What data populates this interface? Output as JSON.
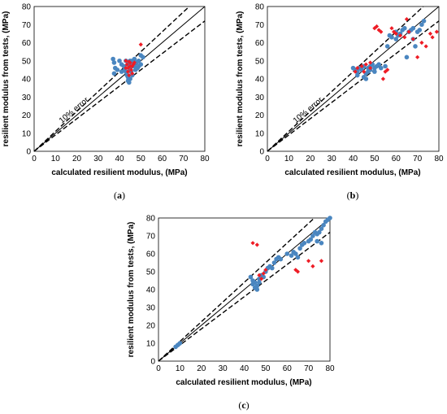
{
  "colors": {
    "series_blue": "#4a86c0",
    "series_red": "#ee1c25",
    "line": "#000000",
    "frame": "#000000",
    "background": "#ffffff"
  },
  "chart_data": [
    {
      "type": "scatter",
      "caption": {
        "open": "(",
        "letter": "a",
        "close": ")"
      },
      "xlabel": "calculated resilient modulus, (MPa)",
      "ylabel": "resilient modulus from tests, (MPa)",
      "xlim": [
        0,
        80
      ],
      "ylim": [
        0,
        80
      ],
      "xticks": [
        0,
        10,
        20,
        30,
        40,
        50,
        60,
        70,
        80
      ],
      "yticks": [
        0,
        10,
        20,
        30,
        40,
        50,
        60,
        70,
        80
      ],
      "annotation": "10% error",
      "reference_lines": [
        {
          "style": "solid",
          "slope": 1.0
        },
        {
          "style": "dashed",
          "slope": 1.1
        },
        {
          "style": "dashed",
          "slope": 0.9
        }
      ],
      "series": [
        {
          "color": "blue",
          "marker": "circle",
          "points": [
            [
              37,
              51
            ],
            [
              37.5,
              49
            ],
            [
              38,
              46
            ],
            [
              37.5,
              43
            ],
            [
              39,
              45
            ],
            [
              40,
              50
            ],
            [
              41,
              48
            ],
            [
              42,
              47
            ],
            [
              42.5,
              45
            ],
            [
              43,
              50
            ],
            [
              43,
              44
            ],
            [
              43.5,
              42
            ],
            [
              44,
              41
            ],
            [
              44,
              39
            ],
            [
              44.5,
              38
            ],
            [
              44,
              48
            ],
            [
              45,
              46
            ],
            [
              45,
              50
            ],
            [
              45.5,
              44
            ],
            [
              46,
              48
            ],
            [
              46,
              42
            ],
            [
              47,
              47
            ],
            [
              47,
              51
            ],
            [
              47.5,
              45
            ],
            [
              48,
              49
            ],
            [
              48.5,
              46
            ],
            [
              49,
              50
            ],
            [
              49,
              47
            ],
            [
              50,
              48
            ],
            [
              50,
              53
            ],
            [
              51,
              52
            ],
            [
              41,
              44
            ],
            [
              45,
              40
            ],
            [
              46,
              50
            ]
          ]
        },
        {
          "color": "red",
          "marker": "diamond",
          "points": [
            [
              43,
              50
            ],
            [
              43.5,
              48
            ],
            [
              44,
              46
            ],
            [
              44,
              44
            ],
            [
              44.5,
              42
            ],
            [
              45,
              49
            ],
            [
              45,
              47
            ],
            [
              45.5,
              45
            ],
            [
              46,
              43
            ],
            [
              46.5,
              48
            ],
            [
              47,
              49
            ],
            [
              43,
              46
            ],
            [
              44.5,
              49.5
            ],
            [
              46,
              47
            ],
            [
              50,
              59
            ]
          ]
        }
      ]
    },
    {
      "type": "scatter",
      "caption": {
        "open": "(",
        "letter": "b",
        "close": ")"
      },
      "xlabel": "calculated resilient modulus, (MPa)",
      "ylabel": "resilient modulus from tests, (MPa)",
      "xlim": [
        0,
        80
      ],
      "ylim": [
        0,
        80
      ],
      "xticks": [
        0,
        10,
        20,
        30,
        40,
        50,
        60,
        70,
        80
      ],
      "yticks": [
        0,
        10,
        20,
        30,
        40,
        50,
        60,
        70,
        80
      ],
      "annotation": "10% error",
      "reference_lines": [
        {
          "style": "solid",
          "slope": 1.0
        },
        {
          "style": "dashed",
          "slope": 1.1
        },
        {
          "style": "dashed",
          "slope": 0.9
        }
      ],
      "series": [
        {
          "color": "blue",
          "marker": "circle",
          "points": [
            [
              40,
              46
            ],
            [
              41,
              45
            ],
            [
              42,
              44
            ],
            [
              42,
              42
            ],
            [
              43,
              46
            ],
            [
              44,
              45
            ],
            [
              45,
              47
            ],
            [
              45,
              41
            ],
            [
              46,
              43
            ],
            [
              46,
              40
            ],
            [
              47,
              46
            ],
            [
              47,
              44
            ],
            [
              48,
              47
            ],
            [
              48,
              45
            ],
            [
              49,
              48
            ],
            [
              50,
              46
            ],
            [
              50,
              44
            ],
            [
              51,
              47
            ],
            [
              52,
              48
            ],
            [
              53,
              46
            ],
            [
              55,
              47
            ],
            [
              56,
              58
            ],
            [
              57,
              64
            ],
            [
              58,
              63
            ],
            [
              60,
              66
            ],
            [
              60,
              62
            ],
            [
              61,
              64
            ],
            [
              62,
              65
            ],
            [
              63,
              67
            ],
            [
              64,
              68
            ],
            [
              65,
              52
            ],
            [
              66,
              66
            ],
            [
              67,
              67
            ],
            [
              68,
              68
            ],
            [
              68,
              62
            ],
            [
              69,
              58
            ],
            [
              70,
              66
            ],
            [
              71,
              67
            ],
            [
              72,
              70
            ],
            [
              73,
              72
            ]
          ]
        },
        {
          "color": "red",
          "marker": "diamond",
          "points": [
            [
              41,
              44
            ],
            [
              42,
              46
            ],
            [
              44,
              47
            ],
            [
              45,
              44
            ],
            [
              46,
              48
            ],
            [
              48,
              46
            ],
            [
              48,
              49
            ],
            [
              50,
              68
            ],
            [
              51,
              69
            ],
            [
              52,
              67
            ],
            [
              53,
              66
            ],
            [
              54,
              40
            ],
            [
              55,
              44
            ],
            [
              56,
              45
            ],
            [
              58,
              68
            ],
            [
              59,
              66
            ],
            [
              60,
              65
            ],
            [
              62,
              64
            ],
            [
              64,
              63
            ],
            [
              65,
              73
            ],
            [
              66,
              66
            ],
            [
              68,
              62
            ],
            [
              70,
              52
            ],
            [
              72,
              60
            ],
            [
              74,
              58
            ],
            [
              76,
              65
            ],
            [
              77,
              63
            ],
            [
              79,
              66
            ]
          ]
        }
      ]
    },
    {
      "type": "scatter",
      "caption": {
        "open": "(",
        "letter": "c",
        "close": ")"
      },
      "xlabel": "calculated resilient modulus, (MPa)",
      "ylabel": "resilient modulus from tests, (MPa)",
      "xlim": [
        0,
        80
      ],
      "ylim": [
        0,
        80
      ],
      "xticks": [
        0,
        10,
        20,
        30,
        40,
        50,
        60,
        70,
        80
      ],
      "yticks": [
        0,
        10,
        20,
        30,
        40,
        50,
        60,
        70,
        80
      ],
      "annotation": "",
      "reference_lines": [
        {
          "style": "solid",
          "slope": 1.0
        },
        {
          "style": "dashed",
          "slope": 1.1
        },
        {
          "style": "dashed",
          "slope": 0.9
        }
      ],
      "series": [
        {
          "color": "blue",
          "marker": "circle",
          "points": [
            [
              8,
              8
            ],
            [
              9,
              9
            ],
            [
              10,
              10
            ],
            [
              43,
              47
            ],
            [
              44,
              45
            ],
            [
              44,
              43
            ],
            [
              45,
              44
            ],
            [
              45,
              41
            ],
            [
              46,
              42
            ],
            [
              46,
              40
            ],
            [
              47,
              44
            ],
            [
              47,
              46
            ],
            [
              48,
              48
            ],
            [
              49,
              47
            ],
            [
              50,
              50
            ],
            [
              51,
              52
            ],
            [
              52,
              53
            ],
            [
              53,
              52
            ],
            [
              54,
              55
            ],
            [
              55,
              57
            ],
            [
              56,
              58
            ],
            [
              57,
              57
            ],
            [
              60,
              60
            ],
            [
              62,
              59
            ],
            [
              63,
              61
            ],
            [
              64,
              60
            ],
            [
              65,
              58
            ],
            [
              66,
              63
            ],
            [
              67,
              65
            ],
            [
              68,
              66
            ],
            [
              70,
              67
            ],
            [
              71,
              68
            ],
            [
              72,
              70
            ],
            [
              73,
              72
            ],
            [
              74,
              71
            ],
            [
              75,
              72
            ],
            [
              76,
              74
            ],
            [
              77,
              76
            ],
            [
              78,
              78
            ],
            [
              79,
              79
            ],
            [
              80,
              80
            ],
            [
              74,
              67
            ],
            [
              76,
              66
            ]
          ]
        },
        {
          "color": "red",
          "marker": "diamond",
          "points": [
            [
              44,
              66
            ],
            [
              46,
              65
            ],
            [
              47,
              48
            ],
            [
              48,
              46
            ],
            [
              49,
              49
            ],
            [
              50,
              51
            ],
            [
              64,
              51
            ],
            [
              65,
              50
            ],
            [
              70,
              56
            ],
            [
              72,
              53
            ],
            [
              76,
              56
            ]
          ]
        }
      ]
    }
  ]
}
